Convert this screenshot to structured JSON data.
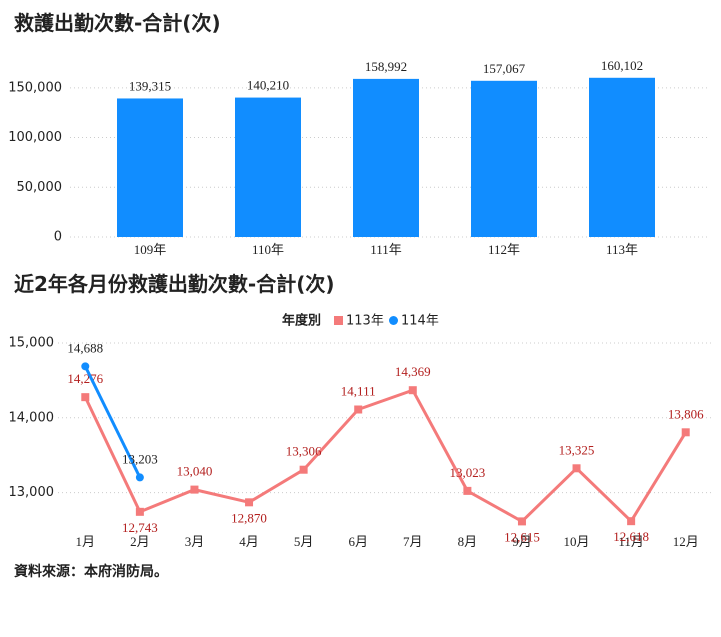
{
  "charts": [
    {
      "chart_data": {
        "type": "bar",
        "title": "救護出勤次數-合計(次)",
        "categories": [
          "109年",
          "110年",
          "111年",
          "112年",
          "113年"
        ],
        "values": [
          139315,
          140210,
          158992,
          157067,
          160102
        ],
        "value_labels": [
          "139,315",
          "140,210",
          "158,992",
          "157,067",
          "160,102"
        ],
        "color": "#118dff",
        "ylim": [
          0,
          180000
        ],
        "yticks": [
          0,
          {
            "value": 50000,
            "label": "50,000"
          },
          {
            "value": 100000,
            "label": "100,000"
          },
          {
            "value": 150000,
            "label": "150,000"
          }
        ],
        "grid": true
      }
    },
    {
      "chart_data": {
        "type": "line",
        "title": "近2年各月份救護出勤次數-合計(次)",
        "legend_title": "年度別",
        "categories": [
          "1月",
          "2月",
          "3月",
          "4月",
          "5月",
          "6月",
          "7月",
          "8月",
          "9月",
          "10月",
          "11月",
          "12月"
        ],
        "series": [
          {
            "name": "113年",
            "color": "#f47a7a",
            "label_color": "#b3201f",
            "marker": "square",
            "values": [
              14276,
              12743,
              13040,
              12870,
              13306,
              14111,
              14369,
              13023,
              12615,
              13325,
              12618,
              13806
            ],
            "value_labels": [
              "14,276",
              "12,743",
              "13,040",
              "12,870",
              "13,306",
              "14,111",
              "14,369",
              "13,023",
              "12,615",
              "13,325",
              "12,618",
              "13,806"
            ]
          },
          {
            "name": "114年",
            "color": "#118dff",
            "label_color": "#222222",
            "marker": "circle",
            "values": [
              14688,
              13203,
              null,
              null,
              null,
              null,
              null,
              null,
              null,
              null,
              null,
              null
            ],
            "value_labels": [
              "14,688",
              "13,203",
              null,
              null,
              null,
              null,
              null,
              null,
              null,
              null,
              null,
              null
            ]
          }
        ],
        "ylim": [
          12500,
          15000
        ],
        "yticks": [
          {
            "value": 13000,
            "label": "13,000"
          },
          {
            "value": 14000,
            "label": "14,000"
          },
          {
            "value": 15000,
            "label": "15,000"
          }
        ],
        "grid": true
      }
    }
  ],
  "source": "資料來源：本府消防局。"
}
